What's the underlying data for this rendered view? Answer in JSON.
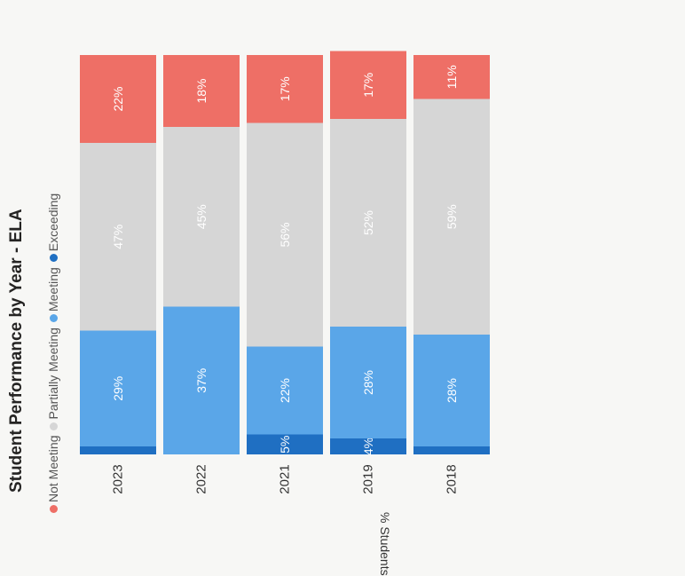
{
  "chart_data": {
    "type": "bar",
    "stacked": true,
    "orientation": "horizontal",
    "title": "Student Performance by Year - ELA",
    "ylabel": "% Students",
    "xlabel": "",
    "xlim": [
      0,
      100
    ],
    "categories": [
      "2023",
      "2022",
      "2021",
      "2019",
      "2018"
    ],
    "series": [
      {
        "name": "Exceeding",
        "color": "#1f6fc2",
        "values": [
          2,
          0,
          5,
          4,
          2
        ],
        "labels": [
          "",
          "",
          "5%",
          "4%",
          ""
        ]
      },
      {
        "name": "Meeting",
        "color": "#5aa6e8",
        "values": [
          29,
          37,
          22,
          28,
          28
        ],
        "labels": [
          "29%",
          "37%",
          "22%",
          "28%",
          "28%"
        ]
      },
      {
        "name": "Partially Meeting",
        "color": "#d6d6d6",
        "values": [
          47,
          45,
          56,
          52,
          59
        ],
        "labels": [
          "47%",
          "45%",
          "56%",
          "52%",
          "59%"
        ]
      },
      {
        "name": "Not Meeting",
        "color": "#ee6f66",
        "values": [
          22,
          18,
          17,
          17,
          11
        ],
        "labels": [
          "22%",
          "18%",
          "17%",
          "17%",
          "11%"
        ]
      }
    ],
    "legend": [
      "Not Meeting",
      "Partially Meeting",
      "Meeting",
      "Exceeding"
    ],
    "legend_position": "top",
    "grid": false
  }
}
